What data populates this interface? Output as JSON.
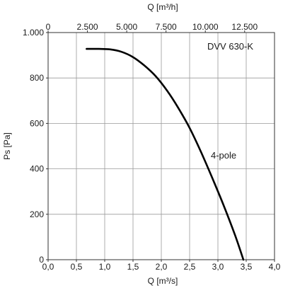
{
  "chart_data": {
    "type": "line",
    "model_label": "DVV 630-K",
    "xlabel": "Q [m³/s]",
    "x2label": "Q [m³/h]",
    "ylabel": "Ps [Pa]",
    "xlim": [
      0,
      4
    ],
    "x2lim": [
      0,
      14400
    ],
    "ylim": [
      0,
      1000
    ],
    "grid": true,
    "x_ticks": [
      0,
      0.5,
      1.0,
      1.5,
      2.0,
      2.5,
      3.0,
      3.5,
      4.0
    ],
    "x_tick_labels": [
      "0,0",
      "0,5",
      "1,0",
      "1,5",
      "2,0",
      "2,5",
      "3,0",
      "3,5",
      "4,0"
    ],
    "x2_ticks": [
      0,
      2500,
      5000,
      7500,
      10000,
      12500
    ],
    "x2_tick_labels": [
      "0",
      "2.500",
      "5.000",
      "7.500",
      "10.000",
      "12.500"
    ],
    "y_ticks": [
      0,
      200,
      400,
      600,
      800,
      1000
    ],
    "y_tick_labels": [
      "0",
      "200",
      "400",
      "600",
      "800",
      "1.000"
    ],
    "series": [
      {
        "name": "4-pole",
        "color": "#000000",
        "x": [
          0.68,
          0.9,
          1.1,
          1.3,
          1.5,
          1.7,
          1.9,
          2.1,
          2.3,
          2.5,
          2.7,
          2.9,
          3.1,
          3.3,
          3.45
        ],
        "y": [
          928,
          928,
          926,
          915,
          892,
          855,
          808,
          745,
          668,
          580,
          475,
          360,
          240,
          110,
          0
        ]
      }
    ]
  }
}
